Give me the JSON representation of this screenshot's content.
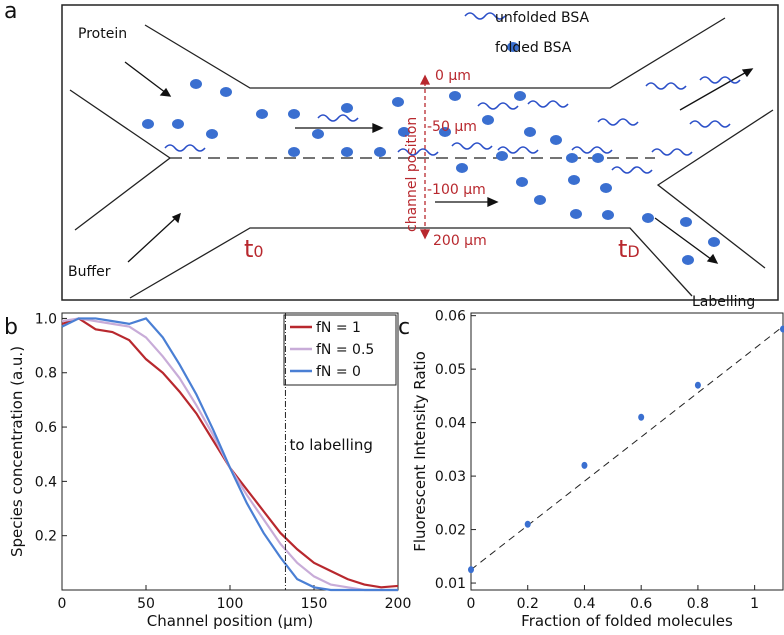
{
  "panels": {
    "a": "a",
    "b": "b",
    "c": "c"
  },
  "diagram": {
    "legend": [
      "unfolded BSA",
      "folded BSA"
    ],
    "inlets": {
      "protein": "Protein",
      "buffer": "Buffer"
    },
    "outlet": "Labelling",
    "positions": [
      "0 µm",
      "-50 µm",
      "-100 µm",
      "200 µm"
    ],
    "position_axis": "channel position",
    "times": [
      {
        "main": "t",
        "sub": "0"
      },
      {
        "main": "t",
        "sub": "D"
      }
    ]
  },
  "chart_data": [
    {
      "type": "line",
      "xlabel": "Channel position (µm)",
      "ylabel": "Species concentration (a.u.)",
      "x": [
        0,
        10,
        20,
        30,
        40,
        50,
        60,
        70,
        80,
        90,
        100,
        110,
        120,
        130,
        140,
        150,
        160,
        170,
        180,
        190,
        200
      ],
      "series": [
        {
          "name": "fN = 1",
          "color": "#b8282e",
          "values": [
            0.98,
            1.0,
            0.96,
            0.95,
            0.92,
            0.85,
            0.8,
            0.73,
            0.65,
            0.55,
            0.45,
            0.37,
            0.29,
            0.21,
            0.15,
            0.1,
            0.07,
            0.04,
            0.02,
            0.01,
            0.015
          ]
        },
        {
          "name": "fN = 0.5",
          "color": "#c8acd8",
          "values": [
            0.99,
            1.0,
            0.99,
            0.98,
            0.97,
            0.93,
            0.86,
            0.78,
            0.68,
            0.57,
            0.45,
            0.35,
            0.26,
            0.17,
            0.1,
            0.05,
            0.02,
            0.01,
            0,
            0,
            0
          ]
        },
        {
          "name": "fN = 0",
          "color": "#4a7fd4",
          "values": [
            0.97,
            1.0,
            1.0,
            0.99,
            0.98,
            1.0,
            0.93,
            0.83,
            0.72,
            0.59,
            0.45,
            0.32,
            0.21,
            0.12,
            0.04,
            0.01,
            0,
            0,
            0,
            0,
            0
          ]
        }
      ],
      "xlim": [
        0,
        200
      ],
      "ylim": [
        0,
        1.02
      ],
      "xticks": [
        0,
        50,
        100,
        150,
        200
      ],
      "yticks": [
        0.2,
        0.4,
        0.6,
        0.8,
        {
          "value": 1,
          "label": "1.0"
        }
      ],
      "legend": "upper right",
      "annotation": {
        "x": 133,
        "text": "to labelling"
      }
    },
    {
      "type": "scatter",
      "xlabel": "Fraction of folded molecules",
      "ylabel": "Fluorescent Intensity Ratio",
      "x": [
        0,
        0.2,
        0.4,
        0.6,
        0.8,
        1.1
      ],
      "values": [
        0.0125,
        0.021,
        0.032,
        0.041,
        0.047,
        0.0575
      ],
      "color": "#3a6fd0",
      "fit": {
        "x": [
          0,
          1.1
        ],
        "y": [
          0.0125,
          0.058
        ]
      },
      "xlim": [
        0,
        1.1
      ],
      "ylim": [
        0.0087,
        0.0605
      ],
      "xticks": [
        0,
        0.2,
        0.4,
        0.6,
        0.8,
        1
      ],
      "yticks": [
        0.01,
        0.02,
        0.03,
        0.04,
        0.05,
        0.06
      ]
    }
  ]
}
